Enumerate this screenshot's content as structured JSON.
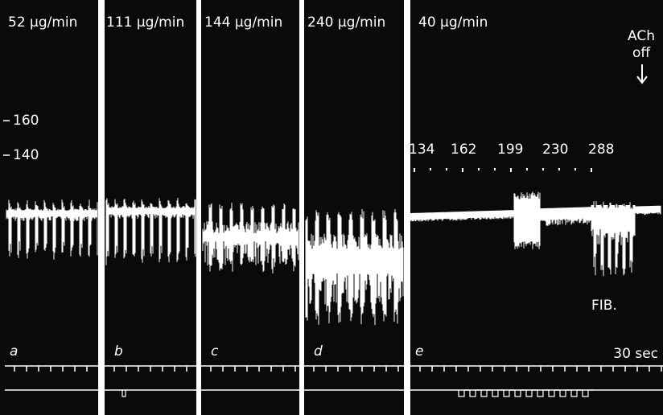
{
  "panels": [
    {
      "dose": "52 μg/min",
      "letter": "a"
    },
    {
      "dose": "111 μg/min",
      "letter": "b"
    },
    {
      "dose": "144 μg/min",
      "letter": "c"
    },
    {
      "dose": "240 μg/min",
      "letter": "d"
    },
    {
      "dose": "40 μg/min",
      "letter": "e"
    }
  ],
  "scale": [
    "160",
    "140"
  ],
  "markers": [
    "134",
    "162",
    "199",
    "230",
    "288"
  ],
  "annotation": {
    "drug": "ACh",
    "state": "off",
    "fib": "FIB."
  },
  "timescale": "30 sec"
}
